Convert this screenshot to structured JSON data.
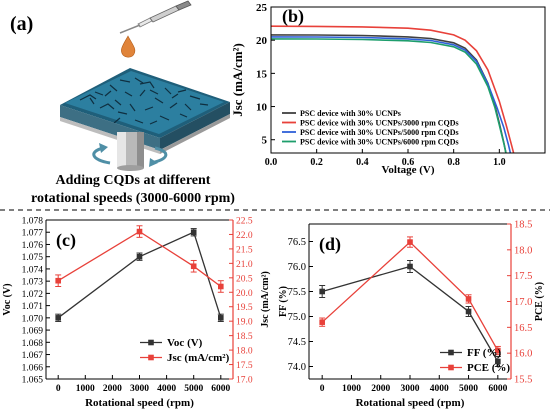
{
  "panel_a": {
    "label": "(a)",
    "caption_line1": "Adding CQDs at different",
    "caption_line2": "rotational speeds (3000-6000 rpm)"
  },
  "chart_data": [
    {
      "panel": "(b)",
      "type": "line",
      "xlabel": "Voltage (V)",
      "ylabel": "Jsc (mA/cm²)",
      "xlim": [
        0.0,
        1.2
      ],
      "ylim": [
        3,
        25
      ],
      "xticks": [
        "0.0",
        "0.2",
        "0.4",
        "0.6",
        "0.8",
        "1.0"
      ],
      "xtick_values": [
        0.0,
        0.2,
        0.4,
        0.6,
        0.8,
        1.0
      ],
      "yticks": [
        "5",
        "10",
        "15",
        "20",
        "25"
      ],
      "ytick_values": [
        5,
        10,
        15,
        20,
        25
      ],
      "legend_position": "bottom-left",
      "series": [
        {
          "name": "PSC device with 30% UCNPs",
          "color": "#404040",
          "x": [
            0.0,
            0.2,
            0.4,
            0.6,
            0.7,
            0.8,
            0.85,
            0.9,
            0.95,
            0.98,
            1.0,
            1.02,
            1.035
          ],
          "y": [
            20.8,
            20.78,
            20.7,
            20.5,
            20.25,
            19.6,
            18.8,
            17.0,
            13.5,
            10.2,
            7.5,
            4.5,
            2.0
          ]
        },
        {
          "name": "PSC device with 30% UCNPs/3000 rpm CQDs",
          "color": "#e8413a",
          "x": [
            0.0,
            0.2,
            0.4,
            0.6,
            0.7,
            0.8,
            0.85,
            0.9,
            0.95,
            1.0,
            1.03,
            1.055,
            1.07
          ],
          "y": [
            22.1,
            22.08,
            22.0,
            21.8,
            21.5,
            20.8,
            20.0,
            18.4,
            15.5,
            10.8,
            7.2,
            4.0,
            2.0
          ]
        },
        {
          "name": "PSC device with 30% UCNPs/5000 rpm CQDs",
          "color": "#2f60d8",
          "x": [
            0.0,
            0.2,
            0.4,
            0.6,
            0.7,
            0.8,
            0.85,
            0.9,
            0.95,
            0.99,
            1.02,
            1.04,
            1.055
          ],
          "y": [
            20.5,
            20.48,
            20.4,
            20.2,
            19.95,
            19.3,
            18.5,
            16.8,
            13.4,
            9.8,
            6.8,
            4.2,
            2.0
          ]
        },
        {
          "name": "PSC device with 30% UCNPs/6000 rpm CQDs",
          "color": "#1e9e6c",
          "x": [
            0.0,
            0.2,
            0.4,
            0.6,
            0.7,
            0.8,
            0.85,
            0.9,
            0.95,
            0.98,
            1.0,
            1.02,
            1.035
          ],
          "y": [
            20.2,
            20.18,
            20.1,
            19.9,
            19.65,
            19.0,
            18.2,
            16.4,
            13.0,
            9.9,
            7.2,
            4.4,
            2.0
          ]
        }
      ]
    },
    {
      "panel": "(c)",
      "type": "line",
      "xlabel": "Rotational speed (rpm)",
      "ylabel_left": "Voc (V)",
      "ylabel_right": "Jsc (mA/cm²)",
      "x": [
        0,
        3000,
        5000,
        6000
      ],
      "xlim": [
        -450,
        6450
      ],
      "xticks": [
        "0",
        "1000",
        "2000",
        "3000",
        "4000",
        "5000",
        "6000"
      ],
      "xtick_values": [
        0,
        1000,
        2000,
        3000,
        4000,
        5000,
        6000
      ],
      "ylim_left": [
        1.065,
        1.078
      ],
      "yticks_left": [
        "1.065",
        "1.066",
        "1.067",
        "1.068",
        "1.069",
        "1.070",
        "1.071",
        "1.072",
        "1.073",
        "1.074",
        "1.075",
        "1.076",
        "1.077",
        "1.078"
      ],
      "ytick_values_left": [
        1.065,
        1.066,
        1.067,
        1.068,
        1.069,
        1.07,
        1.071,
        1.072,
        1.073,
        1.074,
        1.075,
        1.076,
        1.077,
        1.078
      ],
      "ylim_right": [
        17.0,
        22.5
      ],
      "yticks_right": [
        "17.0",
        "17.5",
        "18.0",
        "18.5",
        "19.0",
        "19.5",
        "20.0",
        "20.5",
        "21.0",
        "21.5",
        "22.0",
        "22.5"
      ],
      "ytick_values_right": [
        17.0,
        17.5,
        18.0,
        18.5,
        19.0,
        19.5,
        20.0,
        20.5,
        21.0,
        21.5,
        22.0,
        22.5
      ],
      "legend_position": "lower-right",
      "series": [
        {
          "name": "Voc (V)",
          "axis": "left",
          "color": "#333333",
          "values": [
            1.07,
            1.075,
            1.077,
            1.07
          ],
          "errors": [
            0.0003,
            0.0003,
            0.0003,
            0.0003
          ]
        },
        {
          "name": "Jsc (mA/cm²)",
          "axis": "right",
          "color": "#e8413a",
          "values": [
            20.4,
            22.1,
            20.9,
            20.2
          ],
          "errors": [
            0.2,
            0.2,
            0.2,
            0.2
          ]
        }
      ]
    },
    {
      "panel": "(d)",
      "type": "line",
      "xlabel": "Rotational speed (rpm)",
      "ylabel_left": "FF (%)",
      "ylabel_right": "PCE (%)",
      "x": [
        0,
        3000,
        5000,
        6000
      ],
      "xlim": [
        -450,
        6450
      ],
      "xticks": [
        "0",
        "1000",
        "2000",
        "3000",
        "4000",
        "5000",
        "6000"
      ],
      "xtick_values": [
        0,
        1000,
        2000,
        3000,
        4000,
        5000,
        6000
      ],
      "ylim_left": [
        73.75,
        76.85
      ],
      "yticks_left": [
        "74.0",
        "74.5",
        "75.0",
        "75.5",
        "76.0",
        "76.5"
      ],
      "ytick_values_left": [
        74.0,
        74.5,
        75.0,
        75.5,
        76.0,
        76.5
      ],
      "ylim_right": [
        15.5,
        18.5
      ],
      "yticks_right": [
        "15.5",
        "16.0",
        "16.5",
        "17.0",
        "17.5",
        "18.0",
        "18.5"
      ],
      "ytick_values_right": [
        15.5,
        16.0,
        16.5,
        17.0,
        17.5,
        18.0,
        18.5
      ],
      "legend_position": "lower-right",
      "series": [
        {
          "name": "FF (%)",
          "axis": "left",
          "color": "#333333",
          "values": [
            75.5,
            76.0,
            75.1,
            74.1
          ],
          "errors": [
            0.12,
            0.12,
            0.1,
            0.1
          ]
        },
        {
          "name": "PCE (%)",
          "axis": "right",
          "color": "#e8413a",
          "values": [
            16.6,
            18.15,
            17.05,
            16.05
          ],
          "errors": [
            0.08,
            0.1,
            0.08,
            0.08
          ]
        }
      ]
    }
  ]
}
